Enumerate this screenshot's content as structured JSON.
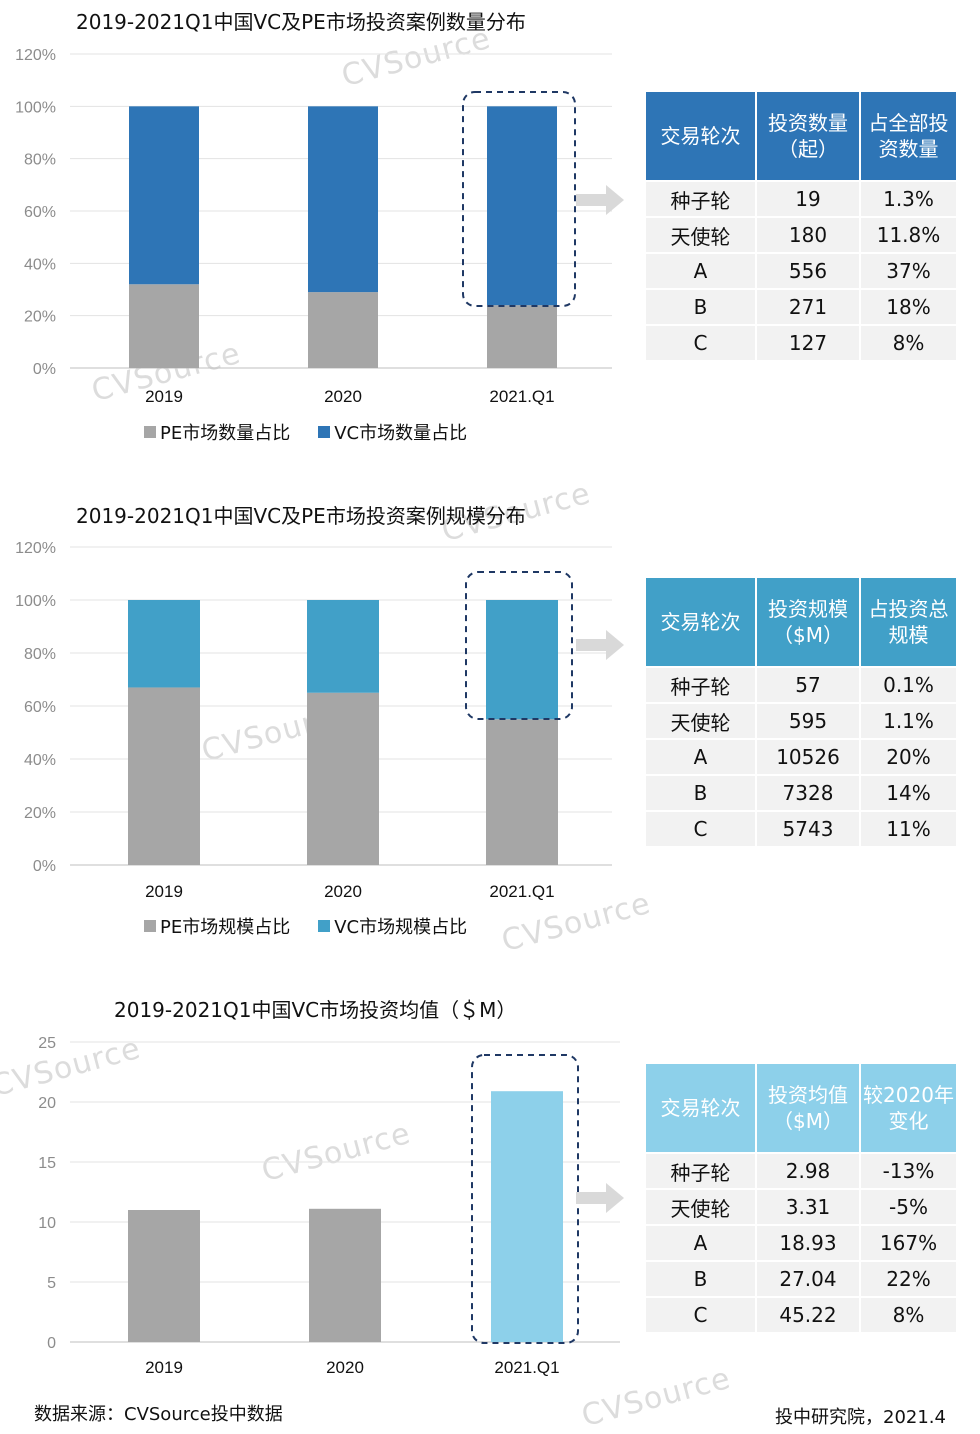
{
  "chart1": {
    "title": "2019-2021Q1中国VC及PE市场投资案例数量分布",
    "legend": [
      "PE市场数量占比",
      "VC市场数量占比"
    ],
    "table": {
      "headers": [
        "交易轮次",
        "投资数量（起）",
        "占全部投资数量"
      ],
      "rows": [
        [
          "种子轮",
          "19",
          "1.3%"
        ],
        [
          "天使轮",
          "180",
          "11.8%"
        ],
        [
          "A",
          "556",
          "37%"
        ],
        [
          "B",
          "271",
          "18%"
        ],
        [
          "C",
          "127",
          "8%"
        ]
      ]
    }
  },
  "chart2": {
    "title": "2019-2021Q1中国VC及PE市场投资案例规模分布",
    "legend": [
      "PE市场规模占比",
      "VC市场规模占比"
    ],
    "table": {
      "headers": [
        "交易轮次",
        "投资规模（$M）",
        "占投资总规模"
      ],
      "rows": [
        [
          "种子轮",
          "57",
          "0.1%"
        ],
        [
          "天使轮",
          "595",
          "1.1%"
        ],
        [
          "A",
          "10526",
          "20%"
        ],
        [
          "B",
          "7328",
          "14%"
        ],
        [
          "C",
          "5743",
          "11%"
        ]
      ]
    }
  },
  "chart3": {
    "title": "2019-2021Q1中国VC市场投资均值（＄M）",
    "table": {
      "headers": [
        "交易轮次",
        "投资均值（$M）",
        "较2020年变化"
      ],
      "rows": [
        [
          "种子轮",
          "2.98",
          "-13%"
        ],
        [
          "天使轮",
          "3.31",
          "-5%"
        ],
        [
          "A",
          "18.93",
          "167%"
        ],
        [
          "B",
          "27.04",
          "22%"
        ],
        [
          "C",
          "45.22",
          "8%"
        ]
      ]
    }
  },
  "footer": {
    "source": "数据来源：CVSource投中数据",
    "credit": "投中研究院，2021.4"
  },
  "watermark": "CVSource",
  "colors": {
    "pe": "#a6a6a6",
    "vc_count": "#2e75b6",
    "vc_scale": "#41a0c8",
    "vc_avg": "#8dd0ea",
    "header1": "#2e75b6",
    "header2": "#41a0c8",
    "header3": "#8dd0ea",
    "highlight": "#1f3864"
  },
  "chart_data": [
    {
      "type": "bar",
      "stacked": true,
      "title": "2019-2021Q1中国VC及PE市场投资案例数量分布",
      "categories": [
        "2019",
        "2020",
        "2021.Q1"
      ],
      "series": [
        {
          "name": "PE市场数量占比",
          "values": [
            32,
            29,
            24
          ]
        },
        {
          "name": "VC市场数量占比",
          "values": [
            68,
            71,
            76
          ]
        }
      ],
      "yticks": [
        "0%",
        "20%",
        "40%",
        "60%",
        "80%",
        "100%",
        "120%"
      ],
      "ylim": [
        0,
        120
      ],
      "grid": true,
      "legend": "bottom"
    },
    {
      "type": "bar",
      "stacked": true,
      "title": "2019-2021Q1中国VC及PE市场投资案例规模分布",
      "categories": [
        "2019",
        "2020",
        "2021.Q1"
      ],
      "series": [
        {
          "name": "PE市场规模占比",
          "values": [
            67,
            65,
            55
          ]
        },
        {
          "name": "VC市场规模占比",
          "values": [
            33,
            35,
            45
          ]
        }
      ],
      "yticks": [
        "0%",
        "20%",
        "40%",
        "60%",
        "80%",
        "100%",
        "120%"
      ],
      "ylim": [
        0,
        120
      ],
      "grid": true,
      "legend": "bottom"
    },
    {
      "type": "bar",
      "title": "2019-2021Q1中国VC市场投资均值（＄M）",
      "categories": [
        "2019",
        "2020",
        "2021.Q1"
      ],
      "values": [
        11,
        11.1,
        20.9
      ],
      "yticks": [
        "0",
        "5",
        "10",
        "15",
        "20",
        "25"
      ],
      "ylim": [
        0,
        25
      ],
      "grid": true
    }
  ]
}
